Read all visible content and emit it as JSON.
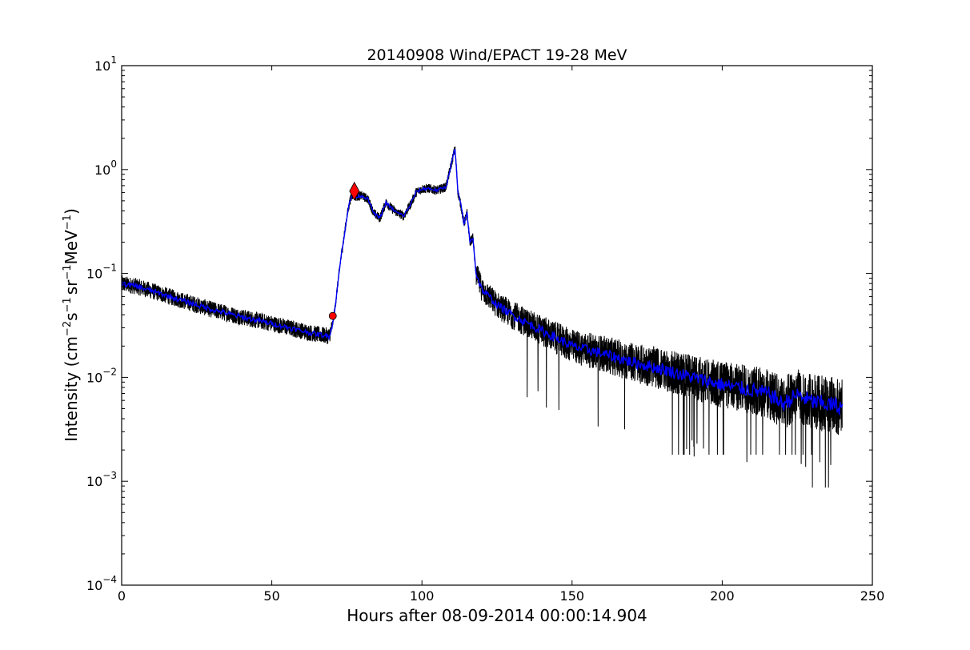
{
  "chart_data": {
    "type": "line",
    "title": "20140908 Wind/EPACT 19-28 MeV",
    "xlabel": "Hours after 08-09-2014 00:00:14.904",
    "ylabel": {
      "base": "Intensity (cm",
      "exp1": "−2",
      "mid1": "s",
      "exp2": "−1",
      "mid2": "sr",
      "exp3": "−1",
      "mid3": "MeV",
      "exp4": "−1",
      "end": ")"
    },
    "xlim": [
      0,
      250
    ],
    "ylim": [
      0.0001,
      10
    ],
    "yscale": "log",
    "grid": false,
    "x_ticks": [
      {
        "value": 0,
        "label": "0"
      },
      {
        "value": 50,
        "label": "50"
      },
      {
        "value": 100,
        "label": "100"
      },
      {
        "value": 150,
        "label": "150"
      },
      {
        "value": 200,
        "label": "200"
      },
      {
        "value": 250,
        "label": "250"
      }
    ],
    "y_ticks": [
      {
        "value": 0.0001,
        "base": "10",
        "exp": "−4"
      },
      {
        "value": 0.001,
        "base": "10",
        "exp": "−3"
      },
      {
        "value": 0.01,
        "base": "10",
        "exp": "−2"
      },
      {
        "value": 0.1,
        "base": "10",
        "exp": "−1"
      },
      {
        "value": 1,
        "base": "10",
        "exp": "0"
      },
      {
        "value": 10,
        "base": "10",
        "exp": "1"
      }
    ],
    "series": [
      {
        "role": "raw",
        "color": "#000000",
        "x": [
          0,
          5,
          10,
          20,
          30,
          40,
          50,
          60,
          65,
          69,
          70,
          71,
          72,
          73,
          74,
          75,
          76,
          77,
          78,
          80,
          82,
          84,
          86,
          88,
          90,
          92,
          94,
          96,
          98,
          100,
          102,
          105,
          108,
          110,
          111,
          111.5,
          112,
          113,
          114,
          115,
          116,
          117,
          118,
          120,
          125,
          130,
          140,
          150,
          160,
          170,
          180,
          190,
          200,
          210,
          215,
          218,
          220,
          225,
          230,
          235,
          240
        ],
        "y": [
          0.08,
          0.075,
          0.068,
          0.055,
          0.045,
          0.038,
          0.033,
          0.028,
          0.026,
          0.025,
          0.03,
          0.045,
          0.08,
          0.14,
          0.22,
          0.35,
          0.5,
          0.58,
          0.55,
          0.56,
          0.52,
          0.38,
          0.34,
          0.48,
          0.42,
          0.38,
          0.36,
          0.45,
          0.6,
          0.65,
          0.66,
          0.63,
          0.68,
          1.2,
          1.6,
          1.0,
          0.6,
          0.45,
          0.3,
          0.38,
          0.2,
          0.22,
          0.1,
          0.07,
          0.05,
          0.04,
          0.028,
          0.02,
          0.017,
          0.014,
          0.012,
          0.01,
          0.0085,
          0.0075,
          0.007,
          0.0062,
          0.0055,
          0.0068,
          0.0058,
          0.0055,
          0.0052
        ],
        "noise_floor": [
          {
            "x_from": 180,
            "x_to": 240,
            "value": 0.0018
          },
          {
            "x_from": 218,
            "x_to": 240,
            "value": 0.00087
          }
        ]
      },
      {
        "role": "smoothed",
        "color": "#0000ff",
        "x": [
          0,
          5,
          10,
          20,
          30,
          40,
          50,
          60,
          65,
          69,
          70,
          71,
          72,
          73,
          74,
          75,
          76,
          77,
          78,
          80,
          82,
          84,
          86,
          88,
          90,
          92,
          94,
          96,
          98,
          100,
          102,
          105,
          108,
          110,
          111,
          111.5,
          112,
          113,
          114,
          115,
          116,
          117,
          118,
          120,
          125,
          130,
          140,
          150,
          160,
          170,
          180,
          190,
          200,
          210,
          215,
          218,
          220,
          225,
          230,
          235,
          240
        ],
        "y": [
          0.08,
          0.075,
          0.068,
          0.055,
          0.045,
          0.038,
          0.033,
          0.028,
          0.026,
          0.025,
          0.03,
          0.045,
          0.08,
          0.14,
          0.22,
          0.35,
          0.5,
          0.58,
          0.55,
          0.56,
          0.52,
          0.38,
          0.34,
          0.48,
          0.42,
          0.38,
          0.36,
          0.45,
          0.6,
          0.65,
          0.66,
          0.63,
          0.68,
          1.2,
          1.6,
          1.0,
          0.6,
          0.45,
          0.3,
          0.38,
          0.2,
          0.22,
          0.1,
          0.07,
          0.05,
          0.04,
          0.028,
          0.02,
          0.017,
          0.014,
          0.012,
          0.01,
          0.0085,
          0.0075,
          0.007,
          0.0062,
          0.0055,
          0.0068,
          0.0058,
          0.0055,
          0.0052
        ]
      }
    ],
    "markers": [
      {
        "name": "onset-marker",
        "shape": "circle",
        "color": "#ff0000",
        "x": 70.3,
        "y": 0.039
      },
      {
        "name": "peak-marker",
        "shape": "diamond",
        "color": "#ff0000",
        "x": 77.5,
        "y": 0.62
      }
    ]
  }
}
